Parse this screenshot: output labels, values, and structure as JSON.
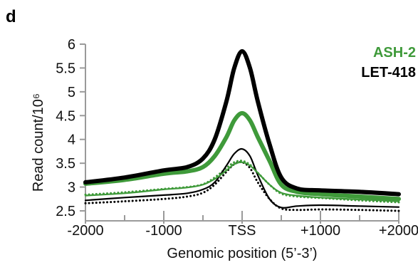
{
  "panel_label": "d",
  "colors": {
    "ash2": "#3f9a3a",
    "let418": "#000000",
    "axis": "#9a9a9a"
  },
  "chart_data": {
    "type": "line",
    "title": "",
    "xlabel": "Genomic position (5’-3’)",
    "ylabel": "Read count/10⁶",
    "xlim": [
      -2000,
      2000
    ],
    "ylim": [
      2.5,
      6
    ],
    "x_ticks": [
      {
        "value": -2000,
        "label": "-2000"
      },
      {
        "value": -1000,
        "label": "-1000"
      },
      {
        "value": 0,
        "label": "TSS"
      },
      {
        "value": 1000,
        "label": "+1000"
      },
      {
        "value": 2000,
        "label": "+2000"
      }
    ],
    "y_ticks": [
      {
        "value": 2.5,
        "label": "2.5"
      },
      {
        "value": 3,
        "label": "3"
      },
      {
        "value": 3.5,
        "label": "3.5"
      },
      {
        "value": 4,
        "label": "4"
      },
      {
        "value": 4.5,
        "label": "4.5"
      },
      {
        "value": 5,
        "label": "5"
      },
      {
        "value": 5.5,
        "label": "5.5"
      },
      {
        "value": 6,
        "label": "6"
      }
    ],
    "legend": {
      "placement": "top-right",
      "entries": [
        {
          "label": "ASH-2",
          "color": "#3f9a3a"
        },
        {
          "label": "LET-418",
          "color": "#000000"
        }
      ]
    },
    "x": [
      -2000,
      -1500,
      -1000,
      -700,
      -500,
      -350,
      -200,
      -100,
      0,
      100,
      200,
      350,
      500,
      700,
      1000,
      1500,
      2000
    ],
    "series": [
      {
        "key": "let418_thick",
        "color": "#000000",
        "width": 6,
        "style": "solid",
        "values": [
          3.1,
          3.2,
          3.35,
          3.42,
          3.6,
          4.0,
          4.8,
          5.5,
          5.85,
          5.5,
          4.8,
          3.9,
          3.2,
          2.97,
          2.93,
          2.9,
          2.85
        ]
      },
      {
        "key": "ash2_thick",
        "color": "#3f9a3a",
        "width": 6,
        "style": "solid",
        "values": [
          3.07,
          3.15,
          3.28,
          3.33,
          3.42,
          3.65,
          4.05,
          4.4,
          4.55,
          4.4,
          4.05,
          3.55,
          3.05,
          2.9,
          2.85,
          2.8,
          2.75
        ]
      },
      {
        "key": "let418_thin",
        "color": "#000000",
        "width": 2.2,
        "style": "solid",
        "values": [
          2.72,
          2.78,
          2.83,
          2.87,
          2.95,
          3.1,
          3.45,
          3.7,
          3.8,
          3.65,
          3.25,
          2.75,
          2.57,
          2.6,
          2.62,
          2.6,
          2.58
        ]
      },
      {
        "key": "ash2_thin",
        "color": "#3f9a3a",
        "width": 2.2,
        "style": "solid",
        "values": [
          2.82,
          2.87,
          2.95,
          2.99,
          3.05,
          3.17,
          3.35,
          3.48,
          3.52,
          3.45,
          3.3,
          3.05,
          2.88,
          2.82,
          2.78,
          2.74,
          2.7
        ]
      },
      {
        "key": "ash2_dotted",
        "color": "#3f9a3a",
        "width": 3,
        "style": "dotted",
        "values": [
          2.84,
          2.89,
          2.96,
          3.0,
          3.06,
          3.2,
          3.4,
          3.52,
          3.55,
          3.47,
          3.3,
          3.05,
          2.86,
          2.8,
          2.77,
          2.72,
          2.68
        ]
      },
      {
        "key": "let418_dotted",
        "color": "#000000",
        "width": 3,
        "style": "dotted",
        "values": [
          2.66,
          2.7,
          2.75,
          2.8,
          2.88,
          3.05,
          3.32,
          3.48,
          3.52,
          3.4,
          3.1,
          2.75,
          2.55,
          2.52,
          2.53,
          2.52,
          2.5
        ]
      }
    ]
  }
}
